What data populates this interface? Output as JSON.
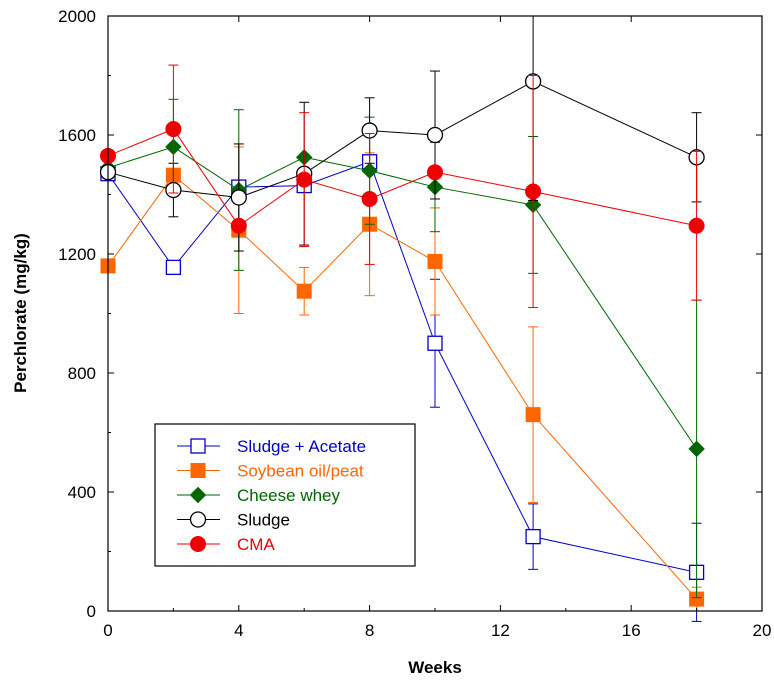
{
  "chart_data": {
    "type": "line",
    "xlabel": "Weeks",
    "ylabel": "Perchlorate (mg/kg)",
    "xlim": [
      0,
      20
    ],
    "ylim": [
      0,
      2000
    ],
    "xticks": [
      0,
      4,
      8,
      12,
      16,
      20
    ],
    "yticks": [
      0,
      400,
      800,
      1200,
      1600,
      2000
    ],
    "grid": false,
    "legend_position": "bottom-left",
    "series": [
      {
        "name": "Sludge + Acetate",
        "color": "#0000cc",
        "marker": "open-square",
        "x": [
          0,
          2,
          4,
          6,
          8,
          10,
          13,
          18
        ],
        "y": [
          1470,
          1155,
          1425,
          1430,
          1510,
          900,
          250,
          130
        ],
        "err": [
          0,
          20,
          0,
          0,
          0,
          215,
          110,
          165
        ]
      },
      {
        "name": "Soybean oil/peat",
        "color": "#ff6600",
        "marker": "filled-square",
        "x": [
          0,
          2,
          4,
          6,
          8,
          10,
          13,
          18
        ],
        "y": [
          1160,
          1465,
          1280,
          1075,
          1300,
          1175,
          660,
          40
        ],
        "err": [
          0,
          0,
          280,
          80,
          240,
          180,
          295,
          40
        ]
      },
      {
        "name": "Cheese whey",
        "color": "#006600",
        "marker": "filled-diamond",
        "x": [
          0,
          2,
          4,
          6,
          8,
          10,
          13,
          18
        ],
        "y": [
          1490,
          1560,
          1415,
          1525,
          1480,
          1425,
          1365,
          545
        ],
        "err": [
          0,
          160,
          270,
          0,
          180,
          150,
          230,
          500
        ]
      },
      {
        "name": "Sludge",
        "color": "#000000",
        "marker": "open-circle",
        "x": [
          0,
          2,
          4,
          6,
          8,
          10,
          13,
          18
        ],
        "y": [
          1475,
          1415,
          1390,
          1470,
          1615,
          1600,
          1780,
          1525
        ],
        "err": [
          0,
          90,
          180,
          240,
          110,
          215,
          400,
          150
        ]
      },
      {
        "name": "CMA",
        "color": "#ee0000",
        "marker": "filled-circle",
        "x": [
          0,
          2,
          4,
          6,
          8,
          10,
          13,
          18
        ],
        "y": [
          1530,
          1620,
          1295,
          1450,
          1385,
          1475,
          1410,
          1295
        ],
        "err": [
          0,
          215,
          0,
          225,
          220,
          0,
          390,
          250
        ]
      }
    ]
  }
}
